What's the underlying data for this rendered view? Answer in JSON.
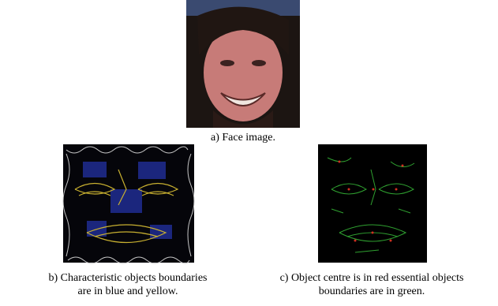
{
  "figures": [
    {
      "caption": [
        "a) Face image."
      ]
    },
    {
      "caption": [
        "b) Characteristic objects boundaries",
        "are in blue and yellow."
      ]
    },
    {
      "caption": [
        "c) Object centre is in red essential objects",
        "boundaries are in green."
      ]
    }
  ]
}
